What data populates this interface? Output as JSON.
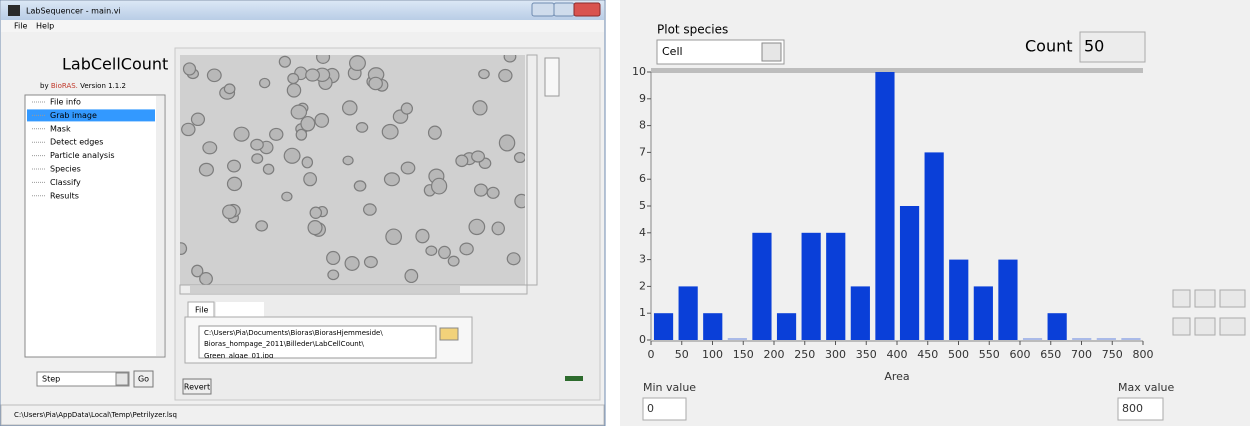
{
  "window": {
    "title": "LabSequencer - main.vi",
    "menu": [
      "File",
      "Help"
    ],
    "app_name": "LabCellCount",
    "credit": [
      "by",
      "BioRAS.",
      "Version 1.1.2"
    ],
    "steps": [
      "File info",
      "Grab image",
      "Mask",
      "Detect edges",
      "Particle analysis",
      "Species",
      "Classify",
      "Results"
    ],
    "selected_step": 1,
    "step_select": "Step",
    "go": "Go",
    "tab": "File",
    "path": [
      "C:\\Users\\Pia\\Documents\\Bioras\\BiorasHjemmeside\\",
      "Bioras_hompage_2011\\Billeder\\LabCellCount\\",
      "Green_algae_01.jpg"
    ],
    "revert": "Revert",
    "status": "C:\\Users\\Pia\\AppData\\Local\\Temp\\Petrilyzer.lsq"
  },
  "panel": {
    "plot_species_label": "Plot species",
    "species": "Cell",
    "count_label": "Count",
    "count": "50",
    "min_label": "Min value",
    "min": "0",
    "max_label": "Max value",
    "max": "800"
  },
  "chart_data": {
    "type": "histogram",
    "bins": [
      0,
      40,
      80,
      120,
      160,
      200,
      240,
      280,
      320,
      360,
      400,
      440,
      480,
      520,
      560,
      600,
      640,
      680,
      720,
      760,
      800
    ],
    "values": [
      1,
      2,
      1,
      0,
      4,
      1,
      4,
      4,
      2,
      10,
      5,
      7,
      3,
      2,
      3,
      0,
      1,
      0,
      0,
      0
    ],
    "color": "#0a3fd8",
    "x_label": "Area",
    "xlim": [
      0,
      800
    ],
    "ylim": [
      0,
      10
    ],
    "xticks": [
      0,
      50,
      100,
      150,
      200,
      250,
      300,
      350,
      400,
      450,
      500,
      550,
      600,
      650,
      700,
      750,
      800
    ],
    "yticks": [
      0,
      1,
      2,
      3,
      4,
      5,
      6,
      7,
      8,
      9,
      10
    ]
  }
}
